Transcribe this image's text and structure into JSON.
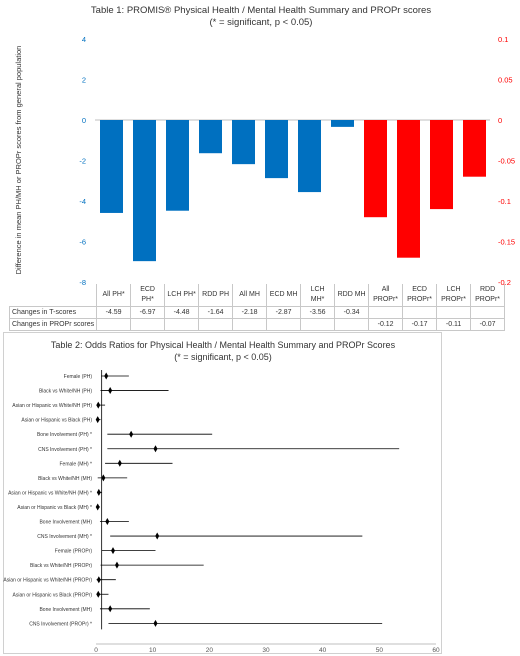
{
  "colors": {
    "blue": "#0070c0",
    "red": "#ff0000",
    "axis_grey": "#bfbfbf",
    "text": "#333333",
    "ink": "#000000"
  },
  "chart_data": [
    {
      "type": "bar",
      "title": "Table 1: PROMIS® Physical Health / Mental Health Summary and PROPr scores",
      "subtitle": "(* = significant, p < 0.05)",
      "ylabel": "Difference in mean PH/MH or PROPr scores from general population",
      "ylim": [
        -8,
        4
      ],
      "ylim_right": [
        -0.2,
        0.1
      ],
      "yticks": [
        "4",
        "2",
        "0",
        "-2",
        "-4",
        "-6",
        "-8"
      ],
      "yticks_right": [
        "0.1",
        "0.05",
        "0",
        "-0.05",
        "-0.1",
        "-0.15",
        "-0.2"
      ],
      "categories": [
        "All PH*",
        "ECD PH*",
        "LCH PH*",
        "RDD PH",
        "All MH",
        "ECD MH",
        "LCH MH*",
        "RDD MH",
        "All PROPr*",
        "ECD PROPr*",
        "LCH PROPr*",
        "RDD PROPr*"
      ],
      "series": [
        {
          "values": [
            -4.59,
            -6.97,
            -4.48,
            -1.64,
            -2.18,
            -2.87,
            -3.56,
            -0.34,
            null,
            null,
            null,
            null
          ],
          "axis": "left",
          "color": "#0070c0"
        },
        {
          "values": [
            null,
            null,
            null,
            null,
            null,
            null,
            null,
            null,
            -0.12,
            -0.17,
            -0.11,
            -0.07
          ],
          "axis": "right",
          "color": "#ff0000"
        }
      ],
      "table": {
        "rows": [
          {
            "label": "Changes in T-scores",
            "cells": [
              "-4.59",
              "-6.97",
              "-4.48",
              "-1.64",
              "-2.18",
              "-2.87",
              "-3.56",
              "-0.34",
              "",
              "",
              "",
              ""
            ]
          },
          {
            "label": "Changes in PROPr scores",
            "cells": [
              "",
              "",
              "",
              "",
              "",
              "",
              "",
              "",
              "-0.12",
              "-0.17",
              "-0.11",
              "-0.07"
            ]
          }
        ]
      },
      "grid": false
    },
    {
      "type": "scatter",
      "subtype": "forest",
      "title": "Table 2: Odds Ratios for Physical Health / Mental Health Summary and PROPr Scores",
      "subtitle": "(* = significant, p < 0.05)",
      "xlim": [
        0,
        60
      ],
      "xticks": [
        "0",
        "10",
        "20",
        "30",
        "40",
        "50",
        "60"
      ],
      "reference_line": 1,
      "rows": [
        {
          "label": "Female (PH)",
          "or": 1.8,
          "low": 0.9,
          "high": 5.8
        },
        {
          "label": "Black vs White/NH (PH)",
          "or": 2.5,
          "low": 0.8,
          "high": 12.8
        },
        {
          "label": "Asian or Hispanic vs White/NH (PH)",
          "or": 0.4,
          "low": 0.1,
          "high": 1.6
        },
        {
          "label": "Asian or Hispanic vs Black (PH)",
          "or": 0.3,
          "low": 0.05,
          "high": 0.8
        },
        {
          "label": "Bone Involvement (PH) *",
          "or": 6.2,
          "low": 2.0,
          "high": 20.5
        },
        {
          "label": "CNS Involvement (PH) *",
          "or": 10.5,
          "low": 2.0,
          "high": 53.5
        },
        {
          "label": "Female (MH) *",
          "or": 4.2,
          "low": 1.6,
          "high": 13.5
        },
        {
          "label": "Black vs White/NH (MH)",
          "or": 1.3,
          "low": 0.3,
          "high": 5.5
        },
        {
          "label": "Asian or Hispanic vs White/NH (MH) *",
          "or": 0.5,
          "low": 0.2,
          "high": 1.0
        },
        {
          "label": "Asian or Hispanic vs Black (MH) *",
          "or": 0.3,
          "low": 0.1,
          "high": 0.7
        },
        {
          "label": "Bone Involvement (MH)",
          "or": 2.0,
          "low": 0.7,
          "high": 5.8
        },
        {
          "label": "CNS Involvement (MH) *",
          "or": 10.8,
          "low": 2.5,
          "high": 47.0
        },
        {
          "label": "Female (PROPr)",
          "or": 3.0,
          "low": 1.0,
          "high": 10.5
        },
        {
          "label": "Black vs White/NH (PROPr)",
          "or": 3.7,
          "low": 0.8,
          "high": 19.0
        },
        {
          "label": "Asian or Hispanic vs White/NH (PROPr)",
          "or": 0.5,
          "low": 0.1,
          "high": 3.5
        },
        {
          "label": "Asian or Hispanic vs Black (PROPr)",
          "or": 0.4,
          "low": 0.1,
          "high": 2.2
        },
        {
          "label": "Bone Involvement (MH)",
          "or": 2.5,
          "low": 0.7,
          "high": 9.5
        },
        {
          "label": "CNS Involvement (PROPr) *",
          "or": 10.5,
          "low": 2.2,
          "high": 50.5
        }
      ]
    }
  ]
}
